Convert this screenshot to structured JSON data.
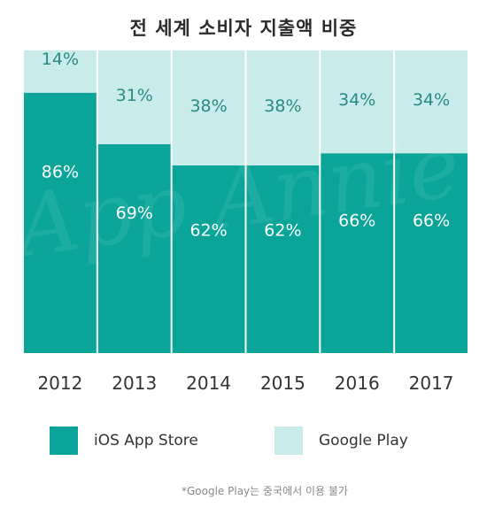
{
  "chart_data": {
    "type": "bar",
    "stacked": true,
    "title": "전 세계 소비자 지출액 비중",
    "categories": [
      "2012",
      "2013",
      "2014",
      "2015",
      "2016",
      "2017"
    ],
    "series": [
      {
        "name": "iOS App Store",
        "values": [
          86,
          69,
          62,
          62,
          66,
          66
        ],
        "color": "#0aa598"
      },
      {
        "name": "Google Play",
        "values": [
          14,
          31,
          38,
          38,
          34,
          34
        ],
        "color": "#c9ecea"
      }
    ],
    "value_labels": {
      "iOS App Store": [
        "86%",
        "69%",
        "62%",
        "62%",
        "66%",
        "66%"
      ],
      "Google Play": [
        "14%",
        "31%",
        "38%",
        "38%",
        "34%",
        "34%"
      ]
    },
    "ylim": [
      0,
      100
    ],
    "legend_position": "bottom",
    "grid": false
  },
  "watermark": "App Annie",
  "footnote": "*Google Play는 중국에서 이용 불가"
}
